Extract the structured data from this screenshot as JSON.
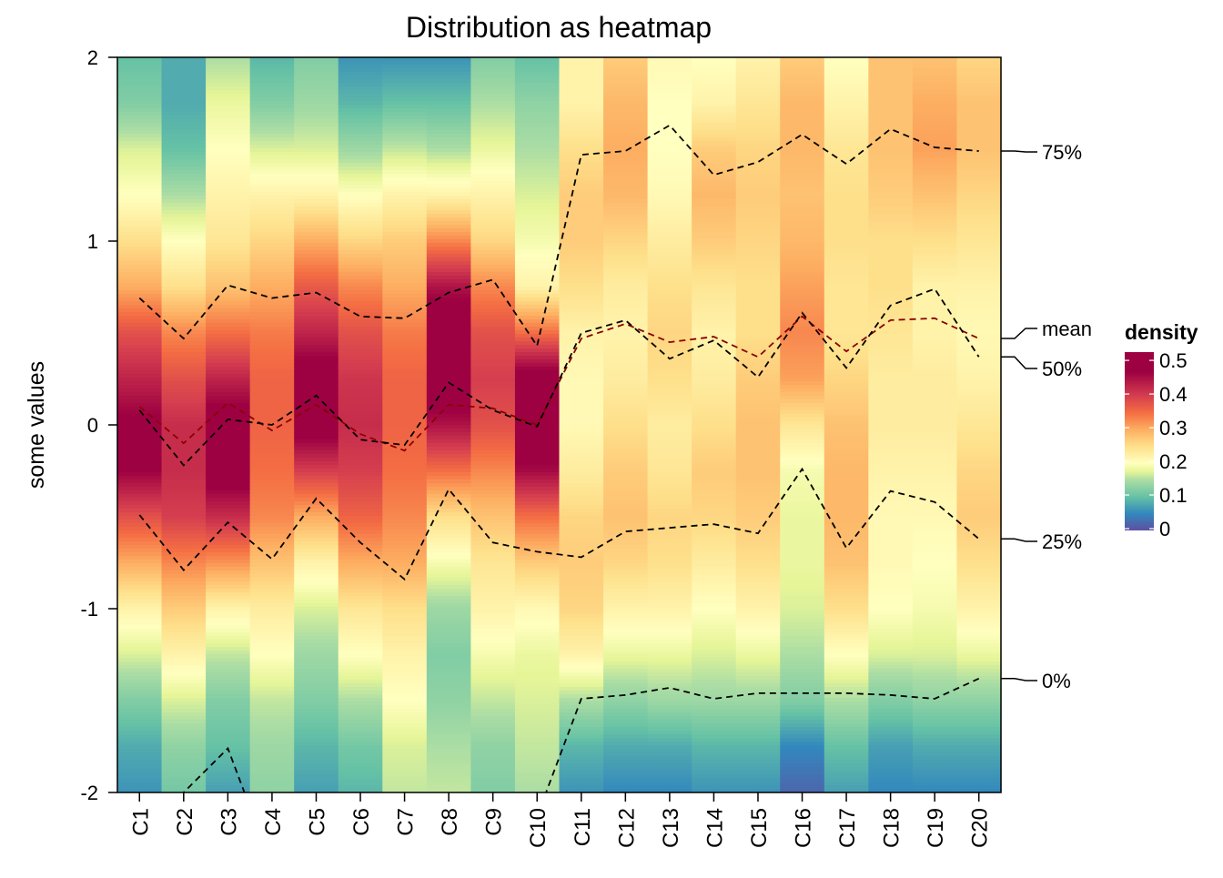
{
  "chart_data": {
    "type": "heatmap",
    "title": "Distribution as heatmap",
    "ylabel": "some values",
    "xlabel": "",
    "ylim": [
      -2,
      2
    ],
    "yticks": [
      "2",
      "1",
      "0",
      "-1",
      "-2"
    ],
    "ytick_values": [
      2,
      1,
      0,
      -1,
      -2
    ],
    "categories": [
      "C1",
      "C2",
      "C3",
      "C4",
      "C5",
      "C6",
      "C7",
      "C8",
      "C9",
      "C10",
      "C11",
      "C12",
      "C13",
      "C14",
      "C15",
      "C16",
      "C17",
      "C18",
      "C19",
      "C20"
    ],
    "density_y": [
      2,
      1.75,
      1.5,
      1.25,
      1,
      0.75,
      0.5,
      0.25,
      0,
      -0.25,
      -0.5,
      -0.75,
      -1,
      -1.25,
      -1.5,
      -1.75,
      -2
    ],
    "density": [
      [
        0.1,
        0.12,
        0.17,
        0.2,
        0.25,
        0.3,
        0.38,
        0.43,
        0.48,
        0.47,
        0.38,
        0.3,
        0.22,
        0.17,
        0.12,
        0.08,
        0.06
      ],
      [
        0.08,
        0.08,
        0.1,
        0.15,
        0.2,
        0.25,
        0.33,
        0.38,
        0.42,
        0.42,
        0.4,
        0.33,
        0.27,
        0.22,
        0.17,
        0.13,
        0.11
      ],
      [
        0.15,
        0.18,
        0.2,
        0.22,
        0.24,
        0.28,
        0.35,
        0.43,
        0.5,
        0.5,
        0.42,
        0.32,
        0.22,
        0.16,
        0.12,
        0.1,
        0.07
      ],
      [
        0.09,
        0.12,
        0.17,
        0.22,
        0.26,
        0.3,
        0.34,
        0.36,
        0.36,
        0.35,
        0.33,
        0.28,
        0.23,
        0.2,
        0.16,
        0.14,
        0.13
      ],
      [
        0.12,
        0.14,
        0.17,
        0.22,
        0.3,
        0.37,
        0.43,
        0.5,
        0.5,
        0.4,
        0.3,
        0.22,
        0.17,
        0.14,
        0.12,
        0.09,
        0.07
      ],
      [
        0.06,
        0.09,
        0.14,
        0.2,
        0.26,
        0.33,
        0.38,
        0.41,
        0.42,
        0.4,
        0.36,
        0.3,
        0.24,
        0.2,
        0.15,
        0.11,
        0.09
      ],
      [
        0.06,
        0.1,
        0.16,
        0.22,
        0.27,
        0.3,
        0.34,
        0.36,
        0.36,
        0.35,
        0.33,
        0.3,
        0.25,
        0.22,
        0.2,
        0.17,
        0.16
      ],
      [
        0.06,
        0.1,
        0.15,
        0.22,
        0.33,
        0.45,
        0.52,
        0.52,
        0.45,
        0.35,
        0.25,
        0.19,
        0.14,
        0.12,
        0.13,
        0.15,
        0.16
      ],
      [
        0.12,
        0.15,
        0.18,
        0.22,
        0.26,
        0.33,
        0.38,
        0.4,
        0.38,
        0.33,
        0.28,
        0.24,
        0.22,
        0.19,
        0.16,
        0.13,
        0.12
      ],
      [
        0.1,
        0.13,
        0.15,
        0.17,
        0.19,
        0.22,
        0.35,
        0.5,
        0.52,
        0.46,
        0.35,
        0.27,
        0.21,
        0.18,
        0.17,
        0.16,
        0.15
      ],
      [
        0.22,
        0.22,
        0.25,
        0.27,
        0.27,
        0.25,
        0.22,
        0.21,
        0.21,
        0.23,
        0.26,
        0.27,
        0.26,
        0.22,
        0.15,
        0.09,
        0.06
      ],
      [
        0.27,
        0.29,
        0.3,
        0.29,
        0.26,
        0.23,
        0.22,
        0.23,
        0.25,
        0.27,
        0.28,
        0.26,
        0.22,
        0.18,
        0.13,
        0.08,
        0.05
      ],
      [
        0.21,
        0.2,
        0.2,
        0.21,
        0.23,
        0.25,
        0.26,
        0.25,
        0.23,
        0.24,
        0.26,
        0.25,
        0.22,
        0.18,
        0.14,
        0.08,
        0.05
      ],
      [
        0.2,
        0.22,
        0.27,
        0.29,
        0.27,
        0.24,
        0.22,
        0.23,
        0.25,
        0.27,
        0.26,
        0.23,
        0.2,
        0.17,
        0.14,
        0.09,
        0.06
      ],
      [
        0.22,
        0.24,
        0.26,
        0.27,
        0.26,
        0.25,
        0.25,
        0.27,
        0.28,
        0.28,
        0.27,
        0.25,
        0.22,
        0.18,
        0.14,
        0.09,
        0.06
      ],
      [
        0.27,
        0.29,
        0.29,
        0.28,
        0.29,
        0.31,
        0.33,
        0.31,
        0.24,
        0.19,
        0.18,
        0.18,
        0.17,
        0.15,
        0.12,
        0.05,
        0.02
      ],
      [
        0.2,
        0.22,
        0.24,
        0.25,
        0.25,
        0.24,
        0.24,
        0.26,
        0.28,
        0.29,
        0.29,
        0.28,
        0.25,
        0.2,
        0.15,
        0.1,
        0.07
      ],
      [
        0.28,
        0.28,
        0.28,
        0.27,
        0.25,
        0.25,
        0.24,
        0.23,
        0.23,
        0.22,
        0.21,
        0.21,
        0.2,
        0.17,
        0.12,
        0.07,
        0.05
      ],
      [
        0.28,
        0.3,
        0.31,
        0.28,
        0.25,
        0.22,
        0.22,
        0.23,
        0.23,
        0.22,
        0.21,
        0.2,
        0.19,
        0.17,
        0.13,
        0.08,
        0.05
      ],
      [
        0.26,
        0.28,
        0.28,
        0.26,
        0.24,
        0.22,
        0.21,
        0.22,
        0.24,
        0.26,
        0.27,
        0.25,
        0.22,
        0.18,
        0.13,
        0.08,
        0.05
      ]
    ],
    "lines": [
      {
        "name": "75%",
        "values": [
          0.69,
          0.47,
          0.76,
          0.69,
          0.72,
          0.59,
          0.58,
          0.72,
          0.79,
          0.43,
          1.47,
          1.49,
          1.63,
          1.36,
          1.43,
          1.58,
          1.42,
          1.61,
          1.51,
          1.49
        ]
      },
      {
        "name": "mean",
        "values": [
          0.1,
          -0.1,
          0.12,
          -0.03,
          0.11,
          -0.05,
          -0.14,
          0.11,
          0.09,
          0.0,
          0.47,
          0.55,
          0.45,
          0.48,
          0.37,
          0.59,
          0.4,
          0.57,
          0.58,
          0.47
        ]
      },
      {
        "name": "50%",
        "values": [
          0.08,
          -0.22,
          0.03,
          0.0,
          0.16,
          -0.08,
          -0.11,
          0.23,
          0.08,
          -0.01,
          0.5,
          0.57,
          0.36,
          0.46,
          0.26,
          0.61,
          0.31,
          0.65,
          0.74,
          0.37
        ]
      },
      {
        "name": "25%",
        "values": [
          -0.49,
          -0.79,
          -0.53,
          -0.73,
          -0.4,
          -0.64,
          -0.84,
          -0.35,
          -0.64,
          -0.69,
          -0.72,
          -0.58,
          -0.56,
          -0.54,
          -0.59,
          -0.24,
          -0.67,
          -0.36,
          -0.42,
          -0.62
        ]
      },
      {
        "name": "0%",
        "values": [
          -2.3,
          -2.0,
          -1.76,
          -2.4,
          -2.4,
          -2.4,
          -2.4,
          -2.4,
          -2.4,
          -2.13,
          -1.49,
          -1.47,
          -1.43,
          -1.49,
          -1.46,
          -1.46,
          -1.46,
          -1.47,
          -1.49,
          -1.38
        ]
      }
    ],
    "line_colors": {
      "mean": "#8B0000",
      "default": "#000000"
    },
    "legend": {
      "title": "density",
      "placement": "right",
      "ticks": [
        "0.5",
        "0.4",
        "0.3",
        "0.2",
        "0.1",
        "0"
      ],
      "tick_values": [
        0.5,
        0.4,
        0.3,
        0.2,
        0.1,
        0
      ],
      "range": [
        0,
        0.53
      ]
    },
    "colormap": [
      [
        0.0,
        "#5E4FA2"
      ],
      [
        0.05,
        "#3288BD"
      ],
      [
        0.1,
        "#66C2A5"
      ],
      [
        0.15,
        "#ABDDA4"
      ],
      [
        0.175,
        "#E6F598"
      ],
      [
        0.2,
        "#FFFFBF"
      ],
      [
        0.25,
        "#FEE08B"
      ],
      [
        0.3,
        "#FDAE61"
      ],
      [
        0.35,
        "#F46D43"
      ],
      [
        0.4,
        "#D53E4F"
      ],
      [
        0.47,
        "#9E0142"
      ],
      [
        0.53,
        "#9E0142"
      ]
    ]
  }
}
